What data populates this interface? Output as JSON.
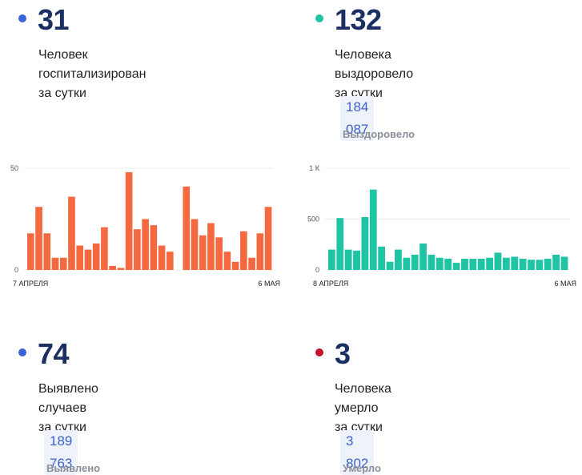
{
  "stats": {
    "hosp": {
      "value": "31",
      "line1": "Человек госпитализирован",
      "line2": "за сутки",
      "dot_color": "#3a63d8"
    },
    "recov": {
      "value": "132",
      "line1": "Человека выздоровело",
      "line2": "за сутки",
      "total": "184 087",
      "total_label": "Выздоровело",
      "dot_color": "#1ec4a4"
    },
    "cases": {
      "value": "74",
      "line1": "Выявлено случаев",
      "line2": "за сутки",
      "total": "189 763",
      "total_label": "Выявлено",
      "dot_color": "#3a63d8"
    },
    "deaths": {
      "value": "3",
      "line1": "Человека умерло",
      "line2": "за сутки",
      "total": "3 802",
      "total_label": "Умерло",
      "dot_color": "#c8102e"
    }
  },
  "chart_data": [
    {
      "type": "bar",
      "color": "#f4693f",
      "x_start_label": "7 АПРЕЛЯ",
      "x_end_label": "6 МАЯ",
      "y_ticks": [
        "50",
        "0"
      ],
      "ylim": [
        0,
        50
      ],
      "values": [
        18,
        31,
        18,
        6,
        6,
        36,
        12,
        10,
        13,
        21,
        2,
        1,
        48,
        20,
        25,
        22,
        12,
        9,
        0,
        41,
        25,
        17,
        23,
        16,
        9,
        4,
        19,
        6,
        18,
        31
      ]
    },
    {
      "type": "bar",
      "color": "#1ec4a4",
      "x_start_label": "8 АПРЕЛЯ",
      "x_end_label": "6 МАЯ",
      "y_ticks": [
        "1 К",
        "500",
        "0"
      ],
      "ylim": [
        0,
        1000
      ],
      "values": [
        200,
        510,
        200,
        190,
        520,
        790,
        230,
        80,
        200,
        120,
        150,
        260,
        150,
        120,
        110,
        70,
        110,
        110,
        110,
        120,
        170,
        120,
        130,
        110,
        100,
        100,
        110,
        150,
        130
      ]
    }
  ]
}
